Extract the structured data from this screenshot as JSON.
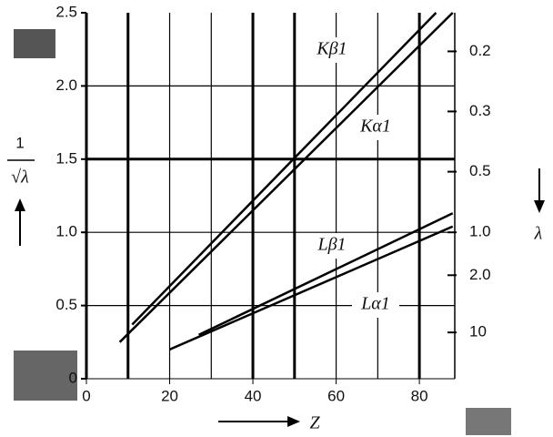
{
  "chart_data": {
    "type": "line",
    "x_label": "Z",
    "y_label": {
      "numerator": "1",
      "denominator": "√λ"
    },
    "y2_label": "λ",
    "xlim": [
      0,
      88.5
    ],
    "xticks": [
      0,
      20,
      40,
      60,
      80
    ],
    "ylim": [
      0,
      2.5
    ],
    "yticks": [
      0,
      0.5,
      {
        "value": 1,
        "label": "1.0"
      },
      1.5,
      {
        "value": 2,
        "label": "2.0"
      },
      2.5
    ],
    "y2scale": "inverse-sqrt",
    "y2ticks": [
      0.2,
      0.3,
      0.5,
      {
        "value": 1,
        "label": "1.0"
      },
      {
        "value": 2,
        "label": "2.0"
      },
      10
    ],
    "x_grid": {
      "thin": [
        20,
        30,
        60,
        70
      ],
      "thick": [
        10,
        40,
        50,
        80
      ]
    },
    "y_grid": {
      "thin": [
        0.5,
        1,
        2
      ],
      "thick": [
        1.5
      ]
    },
    "series": [
      {
        "name": "Kβ1",
        "color": "#000000",
        "x": [
          11,
          84
        ],
        "values": [
          0.37,
          2.5
        ]
      },
      {
        "name": "Kα1",
        "color": "#000000",
        "x": [
          8,
          88
        ],
        "values": [
          0.25,
          2.5
        ]
      },
      {
        "name": "Lβ1",
        "color": "#000000",
        "x": [
          27,
          88
        ],
        "values": [
          0.3,
          1.13
        ]
      },
      {
        "name": "Lα1",
        "color": "#000000",
        "x": [
          20,
          88
        ],
        "values": [
          0.2,
          1.04
        ]
      }
    ]
  }
}
